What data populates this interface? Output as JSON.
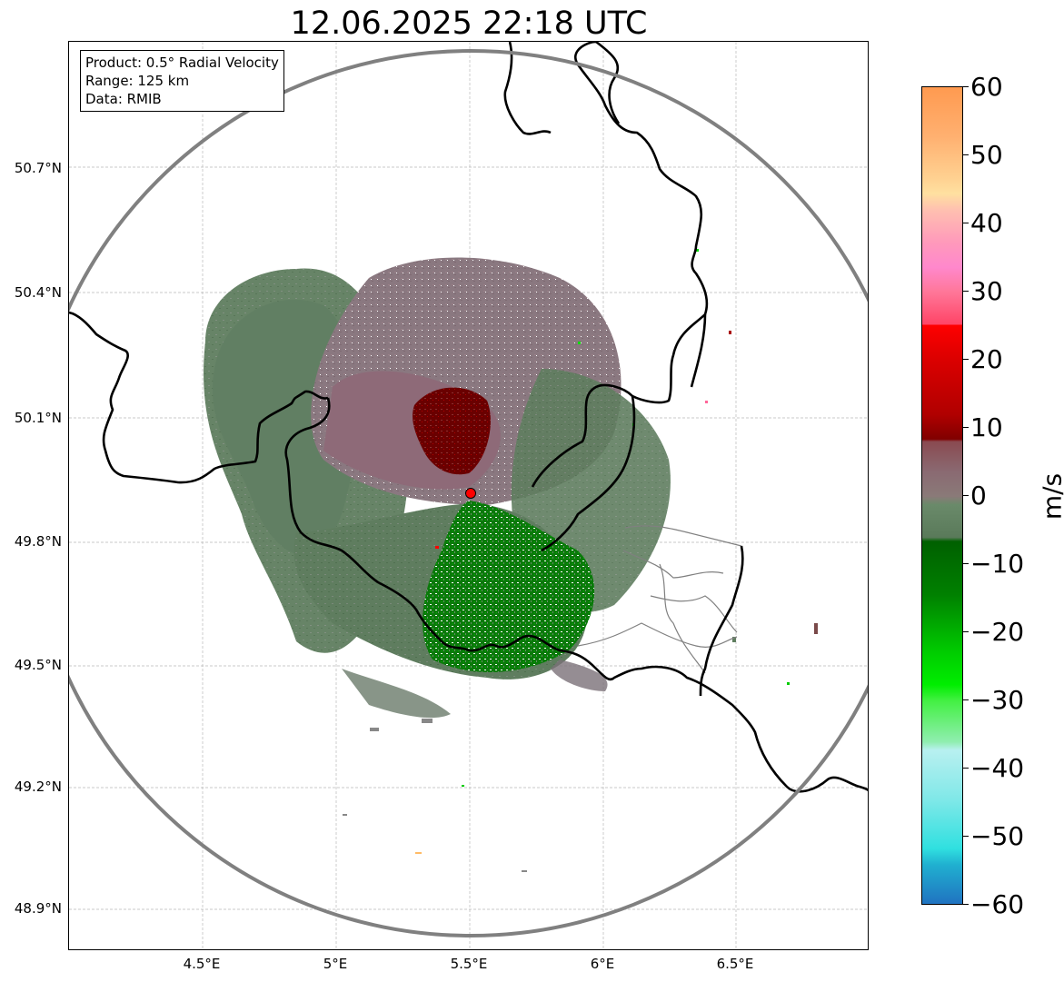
{
  "title": "12.06.2025 22:18 UTC",
  "info_box": {
    "product": "Product: 0.5° Radial Velocity",
    "range": "Range: 125 km",
    "data": "Data: RMIB"
  },
  "axes": {
    "x_ticks": [
      "4.5°E",
      "5°E",
      "5.5°E",
      "6°E",
      "6.5°E"
    ],
    "y_ticks": [
      "50.7°N",
      "50.4°N",
      "50.1°N",
      "49.8°N",
      "49.5°N",
      "49.2°N",
      "48.9°N"
    ],
    "x_range_deg": [
      4.0,
      7.0
    ],
    "y_range_deg": [
      48.8,
      50.99
    ]
  },
  "radar_site": {
    "lon": 5.505,
    "lat": 49.914,
    "color": "#ff0000"
  },
  "colorbar": {
    "unit": "m/s",
    "min": -60,
    "max": 60,
    "tick_labels": [
      "60",
      "50",
      "40",
      "30",
      "20",
      "10",
      "0",
      "−10",
      "−20",
      "−30",
      "−40",
      "−50",
      "−60"
    ]
  },
  "colors": {
    "border": "#000000",
    "range_ring": "#808080",
    "gridline": "#b0b0b0",
    "inbound_strong": "#007000",
    "inbound_weak": "#5e7e5e",
    "outbound_weak": "#8a7078",
    "outbound_strong": "#7a0000"
  }
}
